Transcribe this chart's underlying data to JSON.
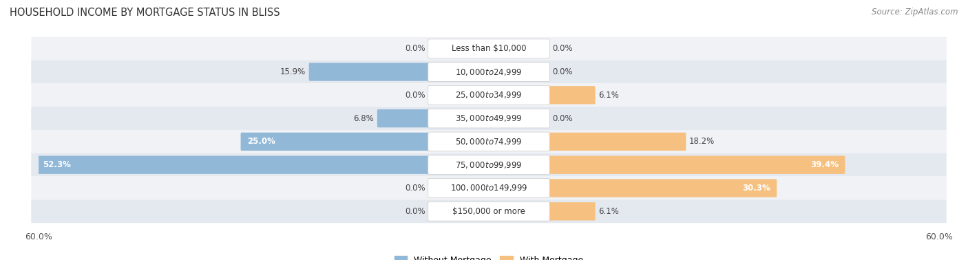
{
  "title": "HOUSEHOLD INCOME BY MORTGAGE STATUS IN BLISS",
  "source": "Source: ZipAtlas.com",
  "categories": [
    "Less than $10,000",
    "$10,000 to $24,999",
    "$25,000 to $34,999",
    "$35,000 to $49,999",
    "$50,000 to $74,999",
    "$75,000 to $99,999",
    "$100,000 to $149,999",
    "$150,000 or more"
  ],
  "without_mortgage": [
    0.0,
    15.9,
    0.0,
    6.8,
    25.0,
    52.3,
    0.0,
    0.0
  ],
  "with_mortgage": [
    0.0,
    0.0,
    6.1,
    0.0,
    18.2,
    39.4,
    30.3,
    6.1
  ],
  "without_mortgage_color": "#92b8d8",
  "with_mortgage_color": "#f5c080",
  "axis_max": 60.0,
  "bg_color": "#ffffff",
  "row_color_even": "#f0f2f5",
  "row_color_odd": "#e4e8ef",
  "label_fontsize": 8.5,
  "title_fontsize": 10.5,
  "source_fontsize": 8.5,
  "legend_fontsize": 9
}
